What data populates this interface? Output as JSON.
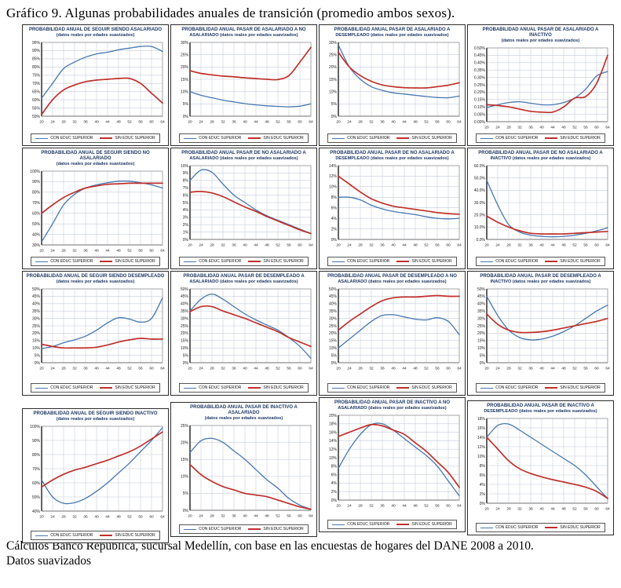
{
  "page": {
    "title": "Gráfico 9. Algunas probabilidades anuales de transición (promedio ambos sexos).",
    "footer_line1": "Cálculos Banco República, sucursal Medellín, con base en las encuestas de hogares del DANE 2008 a 2010.",
    "footer_line2": "Datos suavizados"
  },
  "legend": {
    "con_label": "CON EDUC SUPERIOR",
    "sin_label": "SIN EDUC SUPERIOR"
  },
  "colors": {
    "con": "#4677B1",
    "sin": "#C0302B",
    "grid": "#C4CEDC",
    "axis": "#3a3a3a",
    "frame": "#8a8a8a"
  },
  "chart_data": [
    {
      "type": "line",
      "title_line1": "PROBABILIDAD ANUAL DE SEGUIR SIENDO ASALARIADO",
      "title_line2": "(datos reales por edades suavizados)",
      "x": [
        20,
        24,
        28,
        32,
        36,
        40,
        44,
        48,
        52,
        56,
        60,
        64
      ],
      "ylim": [
        50,
        95
      ],
      "ystep": 5,
      "ydecimals": 0,
      "series": [
        {
          "name": "CON EDUC SUPERIOR",
          "color_key": "con",
          "values": [
            61,
            70,
            79,
            83,
            86,
            88,
            89,
            90.5,
            91.5,
            92.5,
            92.5,
            89.5
          ]
        },
        {
          "name": "SIN EDUC SUPERIOR",
          "color_key": "sin",
          "values": [
            51,
            60,
            66,
            69,
            71,
            72,
            72.5,
            73,
            73,
            70,
            64,
            58
          ]
        }
      ]
    },
    {
      "type": "line",
      "title_line1": "PROBABILIDAD ANUAL PASAR DE ASALARIADO A NO",
      "title_line2": "ASALARIADO (datos reales por edades suavizados)",
      "x": [
        20,
        24,
        28,
        32,
        36,
        40,
        44,
        48,
        52,
        56,
        60,
        64
      ],
      "ylim": [
        0,
        30
      ],
      "ystep": 5,
      "ydecimals": 0,
      "series": [
        {
          "name": "CON EDUC SUPERIOR",
          "color_key": "con",
          "values": [
            10,
            8.5,
            7.5,
            6.5,
            5.8,
            5.1,
            4.6,
            4.2,
            4,
            3.8,
            4.1,
            5
          ]
        },
        {
          "name": "SIN EDUC SUPERIOR",
          "color_key": "sin",
          "values": [
            18.5,
            17.4,
            16.8,
            16.3,
            16,
            15.6,
            15.3,
            15,
            14.9,
            16.5,
            22,
            28
          ]
        }
      ]
    },
    {
      "type": "line",
      "title_line1": "PROBABILIDAD ANUAL PASAR DE ASALARIADO  A",
      "title_line2": "DESEMPLEADO (datos reales por edades suavizados)",
      "x": [
        20,
        24,
        28,
        32,
        36,
        40,
        44,
        48,
        52,
        56,
        60,
        64
      ],
      "ylim": [
        0,
        30
      ],
      "ystep": 5,
      "ydecimals": 0,
      "series": [
        {
          "name": "CON EDUC SUPERIOR",
          "color_key": "con",
          "values": [
            29,
            20,
            15,
            12,
            10.5,
            9.5,
            9,
            8.5,
            8,
            7.6,
            7.5,
            8.2
          ]
        },
        {
          "name": "SIN EDUC SUPERIOR",
          "color_key": "sin",
          "values": [
            26,
            20,
            16.5,
            14.2,
            12.7,
            12,
            11.6,
            11.5,
            11.5,
            12,
            12.6,
            13.6
          ]
        }
      ]
    },
    {
      "type": "line",
      "title_line1": "PROBABILIDAD ANUAL PASAR DE ASALARIADO  A INACTIVO",
      "title_line2": "(datos reales por edades suavizados)",
      "x": [
        20,
        24,
        28,
        32,
        36,
        40,
        44,
        48,
        52,
        56,
        60,
        64
      ],
      "ylim": [
        0,
        0.5
      ],
      "ystep": 0.05,
      "ydecimals": 2,
      "series": [
        {
          "name": "CON EDUC SUPERIOR",
          "color_key": "con",
          "values": [
            0.095,
            0.115,
            0.13,
            0.135,
            0.125,
            0.115,
            0.115,
            0.13,
            0.16,
            0.22,
            0.31,
            0.34
          ]
        },
        {
          "name": "SIN EDUC SUPERIOR",
          "color_key": "sin",
          "values": [
            0.115,
            0.11,
            0.1,
            0.085,
            0.07,
            0.065,
            0.065,
            0.1,
            0.16,
            0.17,
            0.26,
            0.45
          ]
        }
      ]
    },
    {
      "type": "line",
      "title_line1": "PROBABILIDAD ANUAL DE SEGUIR SIENDO NO ASALARIADO",
      "title_line2": "(datos reales por edades suavizados)",
      "x": [
        20,
        24,
        28,
        32,
        36,
        40,
        44,
        48,
        52,
        56,
        60,
        64
      ],
      "ylim": [
        30,
        100
      ],
      "ystep": 10,
      "ydecimals": 0,
      "series": [
        {
          "name": "CON EDUC SUPERIOR",
          "color_key": "con",
          "values": [
            33,
            50,
            68,
            78,
            84,
            87,
            89,
            90.5,
            90.5,
            89,
            87,
            84
          ]
        },
        {
          "name": "SIN EDUC SUPERIOR",
          "color_key": "sin",
          "values": [
            60,
            68,
            75,
            80,
            84,
            86,
            87.5,
            88,
            88.5,
            88.5,
            88.5,
            88.5
          ]
        }
      ]
    },
    {
      "type": "line",
      "title_line1": "PROBABILIDAD ANUAL PASAR DE NO ASALARIADO A",
      "title_line2": "ASALARIADO (datos reales por edades suavizados)",
      "x": [
        20,
        24,
        28,
        32,
        36,
        40,
        44,
        48,
        52,
        56,
        60,
        64
      ],
      "ylim": [
        0,
        10
      ],
      "ystep": 1,
      "ydecimals": 0,
      "series": [
        {
          "name": "CON EDUC SUPERIOR",
          "color_key": "con",
          "values": [
            8,
            9.4,
            9.1,
            7.5,
            6,
            5,
            4,
            3.2,
            2.6,
            2,
            1.4,
            0.8
          ]
        },
        {
          "name": "SIN EDUC SUPERIOR",
          "color_key": "sin",
          "values": [
            6.4,
            6.5,
            6.3,
            5.8,
            5.1,
            4.4,
            3.8,
            3.1,
            2.5,
            1.9,
            1.3,
            0.8
          ]
        }
      ]
    },
    {
      "type": "line",
      "title_line1": "PROBABILIDAD ANUAL PASAR DE NO ASALARIADO  A",
      "title_line2": "DESEMPLEADO (datos reales por edades suavizados)",
      "x": [
        20,
        24,
        28,
        32,
        36,
        40,
        44,
        48,
        52,
        56,
        60,
        64
      ],
      "ylim": [
        0,
        14
      ],
      "ystep": 2,
      "ydecimals": 0,
      "series": [
        {
          "name": "CON EDUC SUPERIOR",
          "color_key": "con",
          "values": [
            8,
            8,
            7.5,
            6.5,
            5.8,
            5.3,
            5,
            4.7,
            4.3,
            4,
            3.9,
            4
          ]
        },
        {
          "name": "SIN EDUC SUPERIOR",
          "color_key": "sin",
          "values": [
            12,
            10.5,
            9,
            7.7,
            6.9,
            6.3,
            6,
            5.7,
            5.4,
            5.1,
            4.9,
            4.8
          ]
        }
      ]
    },
    {
      "type": "line",
      "title_line1": "PROBABILIDAD ANUAL PASAR DE NO ASALARIADO  A",
      "title_line2": "INACTIVO (datos reales por edades suavizados)",
      "x": [
        20,
        24,
        28,
        32,
        36,
        40,
        44,
        48,
        52,
        56,
        60,
        64
      ],
      "ylim": [
        0,
        60
      ],
      "ystep": 10,
      "ydecimals": 1,
      "series": [
        {
          "name": "CON EDUC SUPERIOR",
          "color_key": "con",
          "values": [
            48,
            28,
            12,
            6,
            3.5,
            2.5,
            2.2,
            2.5,
            3.5,
            5,
            7,
            9.5
          ]
        },
        {
          "name": "SIN EDUC SUPERIOR",
          "color_key": "sin",
          "values": [
            19,
            14,
            10,
            7,
            5,
            4.5,
            4.5,
            4.5,
            5,
            5.5,
            6,
            6.5
          ]
        }
      ]
    },
    {
      "type": "line",
      "title_line1": "PROBABILIDAD ANUAL DE SEGUIR SIENDO DESEMPLEADO",
      "title_line2": "(datos reales por edades suavizados)",
      "x": [
        20,
        24,
        28,
        32,
        36,
        40,
        44,
        48,
        52,
        56,
        60,
        64
      ],
      "ylim": [
        0,
        50
      ],
      "ystep": 5,
      "ydecimals": 0,
      "series": [
        {
          "name": "CON EDUC SUPERIOR",
          "color_key": "con",
          "values": [
            9.5,
            11,
            13.5,
            15.5,
            18,
            22,
            27,
            30.5,
            29.5,
            27.5,
            30,
            44
          ]
        },
        {
          "name": "SIN EDUC SUPERIOR",
          "color_key": "sin",
          "values": [
            12.5,
            11,
            10,
            10,
            10,
            10.5,
            12,
            14,
            15.5,
            16.5,
            16,
            16
          ]
        }
      ]
    },
    {
      "type": "line",
      "title_line1": "PROBABILIDAD ANUAL PASAR DE DESEMPLEADO A",
      "title_line2": "ASALARIADO (datos reales por edades suavizados)",
      "x": [
        20,
        24,
        28,
        32,
        36,
        40,
        44,
        48,
        52,
        56,
        60,
        64
      ],
      "ylim": [
        0,
        50
      ],
      "ystep": 5,
      "ydecimals": 0,
      "series": [
        {
          "name": "CON EDUC SUPERIOR",
          "color_key": "con",
          "values": [
            35,
            43,
            46.5,
            43,
            38,
            33,
            29,
            25.5,
            22,
            17,
            11,
            3
          ]
        },
        {
          "name": "SIN EDUC SUPERIOR",
          "color_key": "sin",
          "values": [
            34.5,
            38,
            38,
            35,
            32.5,
            30,
            27,
            24,
            21,
            17,
            14,
            11
          ]
        }
      ]
    },
    {
      "type": "line",
      "title_line1": "PROBABILIDAD ANUAL PASAR DE DESEMPLEADO  A NO",
      "title_line2": "ASALARIADO (datos reales por edades suavizados)",
      "x": [
        20,
        24,
        28,
        32,
        36,
        40,
        44,
        48,
        52,
        56,
        60,
        64
      ],
      "ylim": [
        0,
        50
      ],
      "ystep": 5,
      "ydecimals": 0,
      "series": [
        {
          "name": "CON EDUC SUPERIOR",
          "color_key": "con",
          "values": [
            10,
            16,
            22,
            28,
            32,
            32.5,
            31,
            29.5,
            29,
            30.5,
            28,
            19
          ]
        },
        {
          "name": "SIN EDUC SUPERIOR",
          "color_key": "sin",
          "values": [
            22,
            28,
            33,
            38,
            42,
            44,
            44.5,
            44.5,
            45,
            45.5,
            45,
            45
          ]
        }
      ]
    },
    {
      "type": "line",
      "title_line1": "PROBABILIDAD ANUAL PASAR DE DESEMPLEADO A",
      "title_line2": "INACTIVO (datos reales por edades suavizados)",
      "x": [
        20,
        24,
        28,
        32,
        36,
        40,
        44,
        48,
        52,
        56,
        60,
        64
      ],
      "ylim": [
        0,
        50
      ],
      "ystep": 5,
      "ydecimals": 0,
      "series": [
        {
          "name": "CON EDUC SUPERIOR",
          "color_key": "con",
          "values": [
            45,
            32,
            22,
            17,
            15.5,
            16,
            18,
            21,
            25,
            30,
            35,
            39
          ]
        },
        {
          "name": "SIN EDUC SUPERIOR",
          "color_key": "sin",
          "values": [
            33,
            26,
            22,
            20.5,
            20.5,
            21,
            22,
            23.5,
            25,
            26.5,
            28,
            30
          ]
        }
      ]
    },
    {
      "type": "line",
      "title_line1": "PROBABILIDAD ANUAL DE SEGUIR SIENDO INACTIVO",
      "title_line2": "(datos reales por edades suavizados)",
      "x": [
        20,
        24,
        28,
        32,
        36,
        40,
        44,
        48,
        52,
        56,
        60,
        64
      ],
      "ylim": [
        40,
        100
      ],
      "ystep": 10,
      "ydecimals": 0,
      "series": [
        {
          "name": "CON EDUC SUPERIOR",
          "color_key": "con",
          "values": [
            62,
            50,
            45.5,
            46,
            49,
            54,
            60,
            67,
            74,
            82,
            90,
            99
          ]
        },
        {
          "name": "SIN EDUC SUPERIOR",
          "color_key": "sin",
          "values": [
            57,
            62,
            66,
            69,
            71,
            73.5,
            76,
            79,
            82,
            86,
            91,
            96
          ]
        }
      ]
    },
    {
      "type": "line",
      "title_line1": "PROBABILIDAD ANUAL PASAR DE INACTIVO A ASALARIADO",
      "title_line2": "(datos reales por edades suavizados)",
      "x": [
        20,
        24,
        28,
        32,
        36,
        40,
        44,
        48,
        52,
        56,
        60,
        64
      ],
      "ylim": [
        0,
        25
      ],
      "ystep": 5,
      "ydecimals": 0,
      "series": [
        {
          "name": "CON EDUC SUPERIOR",
          "color_key": "con",
          "values": [
            17,
            20.5,
            21.2,
            20,
            17.5,
            15,
            12,
            9,
            6.5,
            3.5,
            1.5,
            0.3
          ]
        },
        {
          "name": "SIN EDUC SUPERIOR",
          "color_key": "sin",
          "values": [
            13.5,
            10.5,
            8.5,
            7,
            6,
            5,
            4.5,
            4,
            3,
            2,
            1,
            0.3
          ]
        }
      ]
    },
    {
      "type": "line",
      "title_line1": "PROBABILIDAD ANUAL PASAR DE INACTIVO A NO",
      "title_line2": "ASALARIADO (datos reales por edades suavizados)",
      "x": [
        20,
        24,
        28,
        32,
        36,
        40,
        44,
        48,
        52,
        56,
        60,
        64
      ],
      "ylim": [
        0,
        20
      ],
      "ystep": 2,
      "ydecimals": 0,
      "series": [
        {
          "name": "CON EDUC SUPERIOR",
          "color_key": "con",
          "values": [
            7.5,
            12,
            15.5,
            17.8,
            18,
            16.5,
            14.5,
            12.5,
            10.5,
            8,
            4.5,
            1
          ]
        },
        {
          "name": "SIN EDUC SUPERIOR",
          "color_key": "sin",
          "values": [
            15,
            16,
            17,
            17.8,
            17.5,
            16.5,
            15.5,
            13.5,
            11.5,
            9,
            6.5,
            3
          ]
        }
      ]
    },
    {
      "type": "line",
      "title_line1": "PROBABILIDAD ANUAL PASAR DE INACTIVO A",
      "title_line2": "DESEMPLEADO (datos reales por edades suavizados)",
      "x": [
        20,
        24,
        28,
        32,
        36,
        40,
        44,
        48,
        52,
        56,
        60,
        64
      ],
      "ylim": [
        0,
        18
      ],
      "ystep": 2,
      "ydecimals": 0,
      "series": [
        {
          "name": "CON EDUC SUPERIOR",
          "color_key": "con",
          "values": [
            14,
            16.5,
            16.8,
            15.5,
            14,
            12.5,
            11,
            9.5,
            8,
            6,
            3.5,
            1
          ]
        },
        {
          "name": "SIN EDUC SUPERIOR",
          "color_key": "sin",
          "values": [
            14,
            11.5,
            9,
            7.3,
            6.3,
            5.6,
            5,
            4.5,
            4,
            3.4,
            2.5,
            1
          ]
        }
      ]
    }
  ]
}
